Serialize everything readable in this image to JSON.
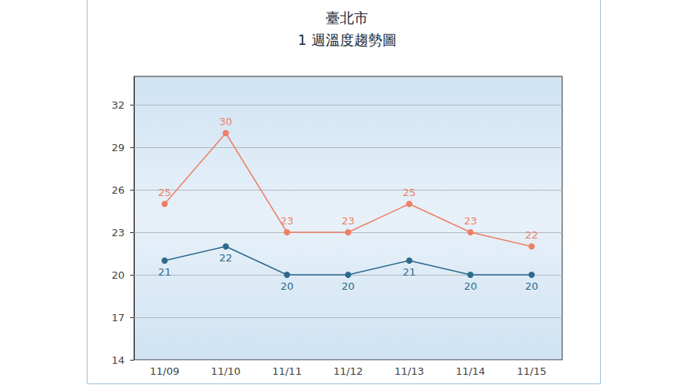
{
  "chart_data": {
    "type": "line",
    "title": "臺北市",
    "subtitle": "1 週溫度趨勢圖",
    "categories": [
      "11/09",
      "11/10",
      "11/11",
      "11/12",
      "11/13",
      "11/14",
      "11/15"
    ],
    "series": [
      {
        "color": "#ef7f66",
        "values": [
          25,
          30,
          23,
          23,
          25,
          23,
          22
        ]
      },
      {
        "color": "#2d6a8c",
        "values": [
          21,
          22,
          20,
          20,
          21,
          20,
          20
        ]
      }
    ],
    "ylim": [
      14,
      34
    ],
    "yticks": [
      14,
      17,
      20,
      23,
      26,
      29,
      32
    ],
    "grid": true,
    "data_labels": true,
    "marker": "circle",
    "line_style": "solid"
  }
}
